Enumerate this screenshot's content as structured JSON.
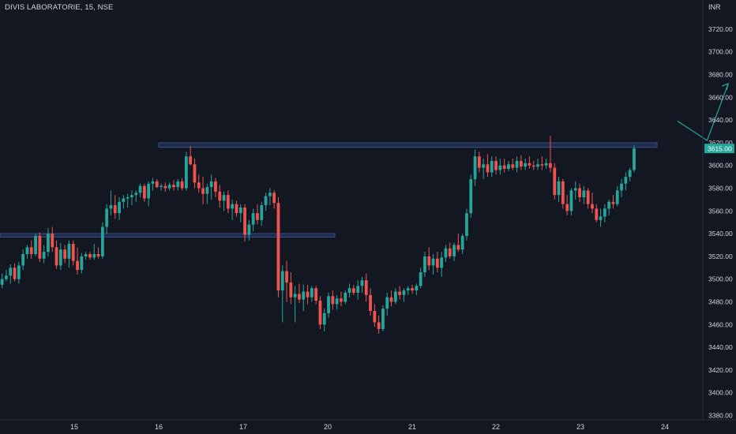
{
  "header": {
    "symbol_title": "DIVIS LABORATORIE, 15, NSE",
    "currency": "INR"
  },
  "colors": {
    "background": "#131722",
    "grid": "#1e222d",
    "text": "#d1d4dc",
    "up_candle": "#26a69a",
    "down_candle": "#ef5350",
    "zone_fill": "#1f2b4d",
    "zone_stroke": "#3a4f88",
    "arrow": "#26a69a",
    "price_tag": "#26a69a"
  },
  "chart_data": {
    "type": "candlestick",
    "title": "DIVIS LABORATORIE, 15, NSE",
    "currency": "INR",
    "ylim": [
      3375,
      3735
    ],
    "y_ticks": [
      3380,
      3400,
      3420,
      3440,
      3460,
      3480,
      3500,
      3520,
      3540,
      3560,
      3580,
      3600,
      3620,
      3640,
      3660,
      3680,
      3700,
      3720
    ],
    "y_tick_labels": [
      "3380.00",
      "3400.00",
      "3420.00",
      "3440.00",
      "3460.00",
      "3480.00",
      "3500.00",
      "3520.00",
      "3540.00",
      "3560.00",
      "3580.00",
      "3600.00",
      "3620.00",
      "3640.00",
      "3660.00",
      "3680.00",
      "3700.00",
      "3720.00"
    ],
    "x_tick_labels": [
      "15",
      "16",
      "17",
      "20",
      "21",
      "22",
      "23",
      "24"
    ],
    "grid": false,
    "last_price": 3615.0,
    "last_price_label": "3615.00",
    "zones": [
      {
        "name": "resistance-zone",
        "from_day": "16",
        "to_day": "24",
        "low": 3616,
        "high": 3620
      },
      {
        "name": "support-zone",
        "from_day": "start",
        "to_day": "17",
        "low": 3537,
        "high": 3540
      }
    ],
    "projection_arrow": [
      {
        "day_offset": 7.2,
        "price": 3639
      },
      {
        "day_offset": 7.55,
        "price": 3622
      },
      {
        "day_offset": 7.8,
        "price": 3672
      }
    ],
    "candles": [
      {
        "o": 3495,
        "h": 3505,
        "l": 3492,
        "c": 3500
      },
      {
        "o": 3500,
        "h": 3508,
        "l": 3498,
        "c": 3503
      },
      {
        "o": 3503,
        "h": 3513,
        "l": 3496,
        "c": 3510
      },
      {
        "o": 3510,
        "h": 3514,
        "l": 3498,
        "c": 3500
      },
      {
        "o": 3500,
        "h": 3515,
        "l": 3496,
        "c": 3512
      },
      {
        "o": 3512,
        "h": 3526,
        "l": 3508,
        "c": 3522
      },
      {
        "o": 3522,
        "h": 3530,
        "l": 3518,
        "c": 3528
      },
      {
        "o": 3528,
        "h": 3534,
        "l": 3518,
        "c": 3522
      },
      {
        "o": 3522,
        "h": 3540,
        "l": 3520,
        "c": 3538
      },
      {
        "o": 3538,
        "h": 3541,
        "l": 3515,
        "c": 3518
      },
      {
        "o": 3518,
        "h": 3530,
        "l": 3514,
        "c": 3524
      },
      {
        "o": 3524,
        "h": 3545,
        "l": 3520,
        "c": 3540
      },
      {
        "o": 3540,
        "h": 3546,
        "l": 3524,
        "c": 3528
      },
      {
        "o": 3528,
        "h": 3534,
        "l": 3509,
        "c": 3512
      },
      {
        "o": 3512,
        "h": 3532,
        "l": 3508,
        "c": 3526
      },
      {
        "o": 3526,
        "h": 3530,
        "l": 3514,
        "c": 3518
      },
      {
        "o": 3518,
        "h": 3534,
        "l": 3510,
        "c": 3531
      },
      {
        "o": 3531,
        "h": 3534,
        "l": 3512,
        "c": 3516
      },
      {
        "o": 3516,
        "h": 3528,
        "l": 3504,
        "c": 3508
      },
      {
        "o": 3508,
        "h": 3523,
        "l": 3505,
        "c": 3520
      },
      {
        "o": 3520,
        "h": 3524,
        "l": 3517,
        "c": 3522
      },
      {
        "o": 3522,
        "h": 3524,
        "l": 3517,
        "c": 3519
      },
      {
        "o": 3519,
        "h": 3531,
        "l": 3517,
        "c": 3522
      },
      {
        "o": 3522,
        "h": 3528,
        "l": 3518,
        "c": 3520
      },
      {
        "o": 3520,
        "h": 3550,
        "l": 3518,
        "c": 3546
      },
      {
        "o": 3546,
        "h": 3566,
        "l": 3540,
        "c": 3562
      },
      {
        "o": 3562,
        "h": 3578,
        "l": 3556,
        "c": 3565
      },
      {
        "o": 3565,
        "h": 3574,
        "l": 3553,
        "c": 3558
      },
      {
        "o": 3558,
        "h": 3572,
        "l": 3552,
        "c": 3568
      },
      {
        "o": 3568,
        "h": 3574,
        "l": 3562,
        "c": 3571
      },
      {
        "o": 3571,
        "h": 3575,
        "l": 3563,
        "c": 3572
      },
      {
        "o": 3572,
        "h": 3578,
        "l": 3565,
        "c": 3574
      },
      {
        "o": 3574,
        "h": 3578,
        "l": 3568,
        "c": 3576
      },
      {
        "o": 3576,
        "h": 3584,
        "l": 3572,
        "c": 3582
      },
      {
        "o": 3582,
        "h": 3584,
        "l": 3568,
        "c": 3571
      },
      {
        "o": 3571,
        "h": 3586,
        "l": 3564,
        "c": 3584
      },
      {
        "o": 3584,
        "h": 3589,
        "l": 3578,
        "c": 3586
      },
      {
        "o": 3586,
        "h": 3588,
        "l": 3580,
        "c": 3581
      },
      {
        "o": 3581,
        "h": 3584,
        "l": 3578,
        "c": 3582
      },
      {
        "o": 3582,
        "h": 3585,
        "l": 3577,
        "c": 3580
      },
      {
        "o": 3580,
        "h": 3585,
        "l": 3578,
        "c": 3583
      },
      {
        "o": 3583,
        "h": 3587,
        "l": 3578,
        "c": 3581
      },
      {
        "o": 3581,
        "h": 3588,
        "l": 3578,
        "c": 3586
      },
      {
        "o": 3586,
        "h": 3589,
        "l": 3578,
        "c": 3580
      },
      {
        "o": 3580,
        "h": 3612,
        "l": 3578,
        "c": 3608
      },
      {
        "o": 3608,
        "h": 3617,
        "l": 3600,
        "c": 3601
      },
      {
        "o": 3601,
        "h": 3606,
        "l": 3580,
        "c": 3585
      },
      {
        "o": 3585,
        "h": 3592,
        "l": 3576,
        "c": 3580
      },
      {
        "o": 3580,
        "h": 3590,
        "l": 3566,
        "c": 3575
      },
      {
        "o": 3575,
        "h": 3584,
        "l": 3566,
        "c": 3581
      },
      {
        "o": 3581,
        "h": 3592,
        "l": 3570,
        "c": 3586
      },
      {
        "o": 3586,
        "h": 3589,
        "l": 3572,
        "c": 3577
      },
      {
        "o": 3577,
        "h": 3583,
        "l": 3563,
        "c": 3569
      },
      {
        "o": 3569,
        "h": 3577,
        "l": 3560,
        "c": 3574
      },
      {
        "o": 3574,
        "h": 3578,
        "l": 3558,
        "c": 3562
      },
      {
        "o": 3562,
        "h": 3570,
        "l": 3552,
        "c": 3566
      },
      {
        "o": 3566,
        "h": 3569,
        "l": 3555,
        "c": 3558
      },
      {
        "o": 3558,
        "h": 3566,
        "l": 3550,
        "c": 3563
      },
      {
        "o": 3563,
        "h": 3566,
        "l": 3533,
        "c": 3539
      },
      {
        "o": 3539,
        "h": 3552,
        "l": 3534,
        "c": 3548
      },
      {
        "o": 3548,
        "h": 3562,
        "l": 3542,
        "c": 3558
      },
      {
        "o": 3558,
        "h": 3566,
        "l": 3548,
        "c": 3552
      },
      {
        "o": 3552,
        "h": 3568,
        "l": 3547,
        "c": 3565
      },
      {
        "o": 3565,
        "h": 3576,
        "l": 3560,
        "c": 3573
      },
      {
        "o": 3573,
        "h": 3580,
        "l": 3565,
        "c": 3576
      },
      {
        "o": 3576,
        "h": 3578,
        "l": 3562,
        "c": 3567
      },
      {
        "o": 3567,
        "h": 3572,
        "l": 3484,
        "c": 3490
      },
      {
        "o": 3490,
        "h": 3512,
        "l": 3462,
        "c": 3507
      },
      {
        "o": 3507,
        "h": 3516,
        "l": 3480,
        "c": 3497
      },
      {
        "o": 3497,
        "h": 3506,
        "l": 3478,
        "c": 3484
      },
      {
        "o": 3484,
        "h": 3494,
        "l": 3462,
        "c": 3487
      },
      {
        "o": 3487,
        "h": 3496,
        "l": 3479,
        "c": 3482
      },
      {
        "o": 3482,
        "h": 3495,
        "l": 3472,
        "c": 3489
      },
      {
        "o": 3489,
        "h": 3495,
        "l": 3478,
        "c": 3484
      },
      {
        "o": 3484,
        "h": 3494,
        "l": 3480,
        "c": 3492
      },
      {
        "o": 3492,
        "h": 3494,
        "l": 3478,
        "c": 3481
      },
      {
        "o": 3481,
        "h": 3485,
        "l": 3456,
        "c": 3460
      },
      {
        "o": 3460,
        "h": 3474,
        "l": 3454,
        "c": 3470
      },
      {
        "o": 3470,
        "h": 3488,
        "l": 3466,
        "c": 3485
      },
      {
        "o": 3485,
        "h": 3490,
        "l": 3473,
        "c": 3478
      },
      {
        "o": 3478,
        "h": 3486,
        "l": 3473,
        "c": 3483
      },
      {
        "o": 3483,
        "h": 3489,
        "l": 3476,
        "c": 3480
      },
      {
        "o": 3480,
        "h": 3490,
        "l": 3478,
        "c": 3488
      },
      {
        "o": 3488,
        "h": 3496,
        "l": 3484,
        "c": 3492
      },
      {
        "o": 3492,
        "h": 3495,
        "l": 3486,
        "c": 3488
      },
      {
        "o": 3488,
        "h": 3499,
        "l": 3482,
        "c": 3494
      },
      {
        "o": 3494,
        "h": 3502,
        "l": 3488,
        "c": 3499
      },
      {
        "o": 3499,
        "h": 3505,
        "l": 3480,
        "c": 3486
      },
      {
        "o": 3486,
        "h": 3492,
        "l": 3468,
        "c": 3472
      },
      {
        "o": 3472,
        "h": 3478,
        "l": 3458,
        "c": 3462
      },
      {
        "o": 3462,
        "h": 3468,
        "l": 3452,
        "c": 3456
      },
      {
        "o": 3456,
        "h": 3477,
        "l": 3454,
        "c": 3474
      },
      {
        "o": 3474,
        "h": 3488,
        "l": 3468,
        "c": 3484
      },
      {
        "o": 3484,
        "h": 3490,
        "l": 3476,
        "c": 3480
      },
      {
        "o": 3480,
        "h": 3492,
        "l": 3478,
        "c": 3489
      },
      {
        "o": 3489,
        "h": 3494,
        "l": 3482,
        "c": 3486
      },
      {
        "o": 3486,
        "h": 3492,
        "l": 3480,
        "c": 3490
      },
      {
        "o": 3490,
        "h": 3494,
        "l": 3486,
        "c": 3492
      },
      {
        "o": 3492,
        "h": 3495,
        "l": 3487,
        "c": 3490
      },
      {
        "o": 3490,
        "h": 3496,
        "l": 3486,
        "c": 3494
      },
      {
        "o": 3494,
        "h": 3510,
        "l": 3492,
        "c": 3506
      },
      {
        "o": 3506,
        "h": 3524,
        "l": 3502,
        "c": 3520
      },
      {
        "o": 3520,
        "h": 3528,
        "l": 3508,
        "c": 3512
      },
      {
        "o": 3512,
        "h": 3522,
        "l": 3504,
        "c": 3518
      },
      {
        "o": 3518,
        "h": 3524,
        "l": 3506,
        "c": 3510
      },
      {
        "o": 3510,
        "h": 3524,
        "l": 3502,
        "c": 3519
      },
      {
        "o": 3519,
        "h": 3530,
        "l": 3515,
        "c": 3527
      },
      {
        "o": 3527,
        "h": 3532,
        "l": 3518,
        "c": 3520
      },
      {
        "o": 3520,
        "h": 3532,
        "l": 3516,
        "c": 3530
      },
      {
        "o": 3530,
        "h": 3540,
        "l": 3524,
        "c": 3526
      },
      {
        "o": 3526,
        "h": 3540,
        "l": 3522,
        "c": 3538
      },
      {
        "o": 3538,
        "h": 3562,
        "l": 3534,
        "c": 3558
      },
      {
        "o": 3558,
        "h": 3592,
        "l": 3554,
        "c": 3588
      },
      {
        "o": 3588,
        "h": 3614,
        "l": 3582,
        "c": 3608
      },
      {
        "o": 3608,
        "h": 3612,
        "l": 3594,
        "c": 3598
      },
      {
        "o": 3598,
        "h": 3606,
        "l": 3588,
        "c": 3601
      },
      {
        "o": 3601,
        "h": 3610,
        "l": 3590,
        "c": 3594
      },
      {
        "o": 3594,
        "h": 3608,
        "l": 3590,
        "c": 3604
      },
      {
        "o": 3604,
        "h": 3608,
        "l": 3592,
        "c": 3596
      },
      {
        "o": 3596,
        "h": 3606,
        "l": 3592,
        "c": 3600
      },
      {
        "o": 3600,
        "h": 3606,
        "l": 3594,
        "c": 3597
      },
      {
        "o": 3597,
        "h": 3604,
        "l": 3595,
        "c": 3601
      },
      {
        "o": 3601,
        "h": 3606,
        "l": 3596,
        "c": 3598
      },
      {
        "o": 3598,
        "h": 3608,
        "l": 3594,
        "c": 3604
      },
      {
        "o": 3604,
        "h": 3609,
        "l": 3596,
        "c": 3599
      },
      {
        "o": 3599,
        "h": 3606,
        "l": 3596,
        "c": 3602
      },
      {
        "o": 3602,
        "h": 3608,
        "l": 3597,
        "c": 3600
      },
      {
        "o": 3600,
        "h": 3604,
        "l": 3596,
        "c": 3599
      },
      {
        "o": 3599,
        "h": 3606,
        "l": 3596,
        "c": 3601
      },
      {
        "o": 3601,
        "h": 3608,
        "l": 3596,
        "c": 3600
      },
      {
        "o": 3600,
        "h": 3606,
        "l": 3597,
        "c": 3602
      },
      {
        "o": 3602,
        "h": 3626,
        "l": 3594,
        "c": 3598
      },
      {
        "o": 3598,
        "h": 3602,
        "l": 3570,
        "c": 3574
      },
      {
        "o": 3574,
        "h": 3590,
        "l": 3568,
        "c": 3586
      },
      {
        "o": 3586,
        "h": 3588,
        "l": 3562,
        "c": 3566
      },
      {
        "o": 3566,
        "h": 3574,
        "l": 3556,
        "c": 3560
      },
      {
        "o": 3560,
        "h": 3580,
        "l": 3556,
        "c": 3578
      },
      {
        "o": 3578,
        "h": 3586,
        "l": 3570,
        "c": 3580
      },
      {
        "o": 3580,
        "h": 3584,
        "l": 3568,
        "c": 3572
      },
      {
        "o": 3572,
        "h": 3582,
        "l": 3566,
        "c": 3578
      },
      {
        "o": 3578,
        "h": 3580,
        "l": 3562,
        "c": 3566
      },
      {
        "o": 3566,
        "h": 3576,
        "l": 3558,
        "c": 3562
      },
      {
        "o": 3562,
        "h": 3566,
        "l": 3550,
        "c": 3552
      },
      {
        "o": 3552,
        "h": 3562,
        "l": 3546,
        "c": 3555
      },
      {
        "o": 3555,
        "h": 3566,
        "l": 3550,
        "c": 3562
      },
      {
        "o": 3562,
        "h": 3570,
        "l": 3556,
        "c": 3568
      },
      {
        "o": 3568,
        "h": 3574,
        "l": 3562,
        "c": 3566
      },
      {
        "o": 3566,
        "h": 3582,
        "l": 3564,
        "c": 3578
      },
      {
        "o": 3578,
        "h": 3588,
        "l": 3572,
        "c": 3584
      },
      {
        "o": 3584,
        "h": 3594,
        "l": 3578,
        "c": 3590
      },
      {
        "o": 3590,
        "h": 3598,
        "l": 3586,
        "c": 3596
      },
      {
        "o": 3596,
        "h": 3618,
        "l": 3594,
        "c": 3615
      }
    ]
  }
}
